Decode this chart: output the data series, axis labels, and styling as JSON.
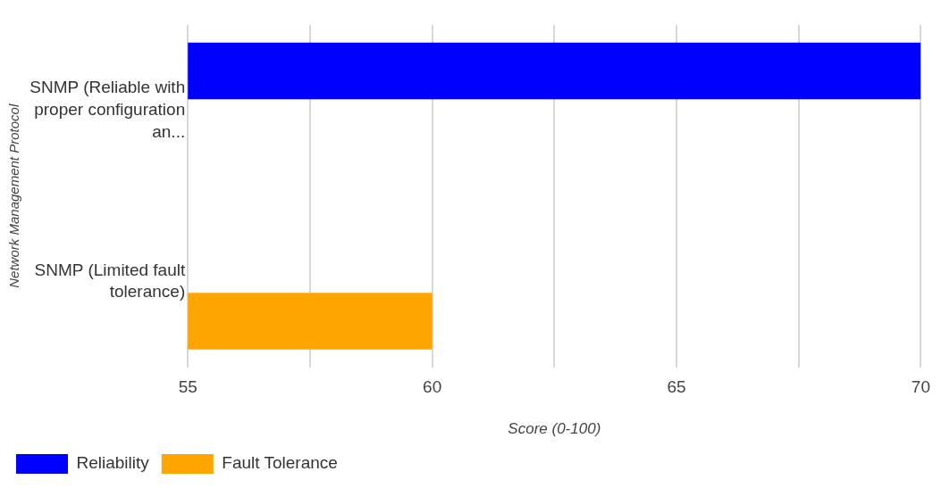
{
  "chart_data": {
    "type": "bar",
    "orientation": "horizontal",
    "xlabel": "Score (0-100)",
    "ylabel": "Network Management Protocol",
    "categories": [
      "SNMP (Reliable with proper configuration an...",
      "SNMP (Limited fault tolerance)"
    ],
    "series": [
      {
        "name": "Reliability",
        "color": "#0000ff",
        "values": [
          70,
          null
        ]
      },
      {
        "name": "Fault Tolerance",
        "color": "#ffa500",
        "values": [
          null,
          60
        ]
      }
    ],
    "xlim": [
      55,
      70
    ],
    "xticks": [
      55,
      {
        "value": 57.5,
        "label": null
      },
      60,
      {
        "value": 62.5,
        "label": null
      },
      65,
      {
        "value": 67.5,
        "label": null
      },
      70
    ],
    "grid": "x",
    "legend": "bottom left"
  }
}
